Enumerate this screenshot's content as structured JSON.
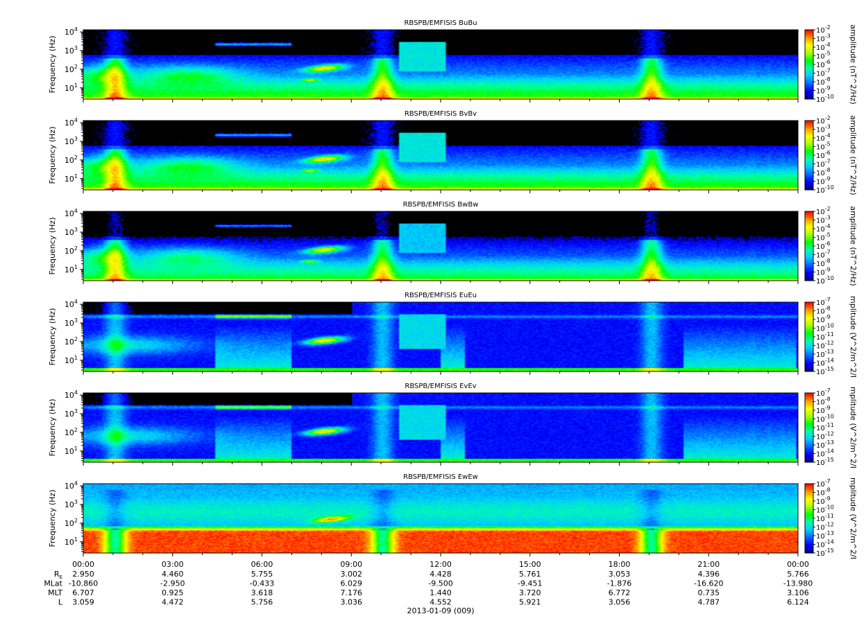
{
  "chart_data": {
    "type": "heatmap",
    "date_label": "2013-01-09 (009)",
    "x_tick_labels": [
      "00:00",
      "03:00",
      "06:00",
      "09:00",
      "12:00",
      "15:00",
      "18:00",
      "21:00",
      "00:00"
    ],
    "x_range_hours": [
      0,
      24
    ],
    "ylabel": "Frequency (Hz)",
    "y_scale": "log",
    "ylim_hz": [
      2.5,
      13000
    ],
    "y_ticks": [
      {
        "value": 10,
        "base": "10",
        "exp": "1"
      },
      {
        "value": 100,
        "base": "10",
        "exp": "2"
      },
      {
        "value": 1000,
        "base": "10",
        "exp": "3"
      },
      {
        "value": 10000,
        "base": "10",
        "exp": "4"
      }
    ],
    "colormap": [
      "#00008b",
      "#0000ff",
      "#0066ff",
      "#00ccff",
      "#00ffaa",
      "#00ff00",
      "#aaff00",
      "#ffff00",
      "#ff9900",
      "#ff0000"
    ],
    "panels": [
      {
        "title": "RBSPB/EMFISIS  BuBu",
        "variant": "b",
        "colorbar_label": "amplitude (nT^2/Hz)",
        "colorbar_ticks": [
          "-2",
          "-3",
          "-4",
          "-5",
          "-6",
          "-7",
          "-8",
          "-9",
          "-10"
        ],
        "colorbar_range_exp": [
          -10,
          -2
        ]
      },
      {
        "title": "RBSPB/EMFISIS  BvBv",
        "variant": "b",
        "colorbar_label": "amplitude (nT^2/Hz)",
        "colorbar_ticks": [
          "-2",
          "-3",
          "-4",
          "-5",
          "-6",
          "-7",
          "-8",
          "-9",
          "-10"
        ],
        "colorbar_range_exp": [
          -10,
          -2
        ]
      },
      {
        "title": "RBSPB/EMFISIS  BwBw",
        "variant": "bw",
        "colorbar_label": "amplitude (nT^2/Hz)",
        "colorbar_ticks": [
          "-2",
          "-3",
          "-4",
          "-5",
          "-6",
          "-7",
          "-8",
          "-9",
          "-10"
        ],
        "colorbar_range_exp": [
          -10,
          -2
        ]
      },
      {
        "title": "RBSPB/EMFISIS  EuEu",
        "variant": "e",
        "colorbar_label": "mplitude (V^2/m^2/I",
        "colorbar_ticks": [
          "-7",
          "-8",
          "-9",
          "-10",
          "-11",
          "-12",
          "-13",
          "-14",
          "-15"
        ],
        "colorbar_range_exp": [
          -15,
          -7
        ]
      },
      {
        "title": "RBSPB/EMFISIS  EvEv",
        "variant": "e",
        "colorbar_label": "mplitude (V^2/m^2/I",
        "colorbar_ticks": [
          "-7",
          "-8",
          "-9",
          "-10",
          "-11",
          "-12",
          "-13",
          "-14",
          "-15"
        ],
        "colorbar_range_exp": [
          -15,
          -7
        ]
      },
      {
        "title": "RBSPB/EMFISIS  EwEw",
        "variant": "ew",
        "colorbar_label": "mplitude (V^2/m^2/I",
        "colorbar_ticks": [
          "-7",
          "-8",
          "-9",
          "-10",
          "-11",
          "-12",
          "-13",
          "-14",
          "-15"
        ],
        "colorbar_range_exp": [
          -15,
          -7
        ]
      }
    ],
    "ephemeris": [
      {
        "label": "R",
        "label_sub": "E",
        "values": [
          "2.950",
          "4.460",
          "5.755",
          "3.002",
          "4.428",
          "5.761",
          "3.053",
          "4.396",
          "5.766"
        ]
      },
      {
        "label": "MLat",
        "label_sub": "",
        "values": [
          "-10.860",
          "-2.950",
          "-0.433",
          "6.029",
          "-9.500",
          "-9.451",
          "-1.876",
          "-16.620",
          "-13.980"
        ]
      },
      {
        "label": "MLT",
        "label_sub": "",
        "values": [
          "6.707",
          "0.925",
          "3.618",
          "7.176",
          "1.440",
          "3.720",
          "6.772",
          "0.735",
          "3.106"
        ]
      },
      {
        "label": "L",
        "label_sub": "",
        "values": [
          "3.059",
          "4.472",
          "5.756",
          "3.036",
          "4.552",
          "5.921",
          "3.056",
          "4.787",
          "6.124"
        ]
      }
    ]
  }
}
